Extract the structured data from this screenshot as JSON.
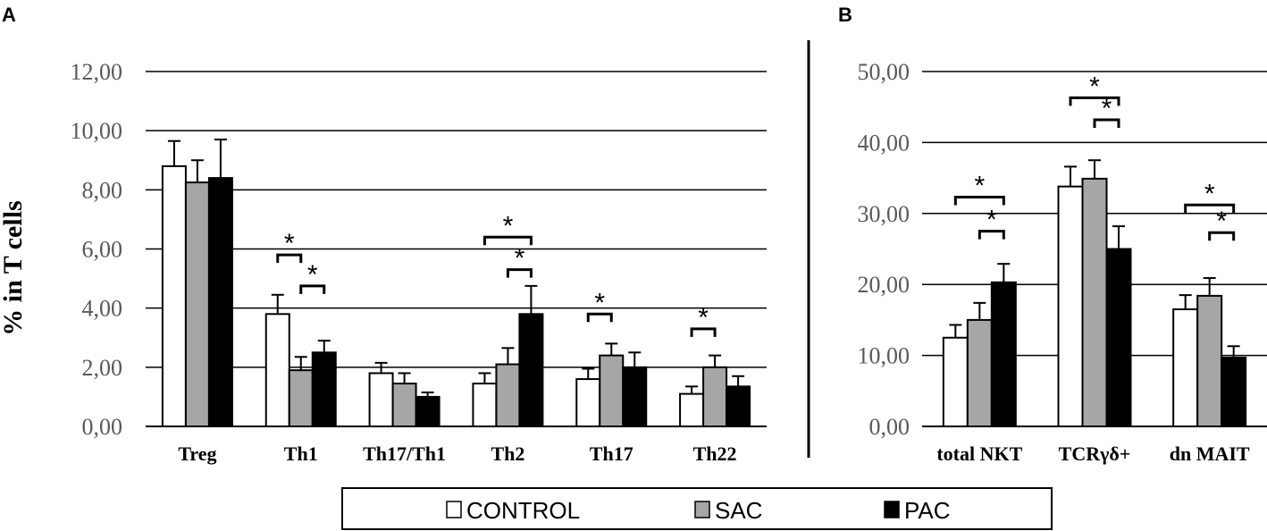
{
  "y_axis_label": "% in T cells",
  "legend": [
    {
      "label": "CONTROL",
      "color": "#ffffff"
    },
    {
      "label": "SAC",
      "color": "#a6a6a6"
    },
    {
      "label": "PAC",
      "color": "#000000"
    }
  ],
  "chart_data": [
    {
      "panel": "A",
      "type": "bar",
      "ylim": [
        0,
        12
      ],
      "yticks": [
        "0,00",
        "2,00",
        "4,00",
        "6,00",
        "8,00",
        "10,00",
        "12,00"
      ],
      "categories": [
        "Treg",
        "Th1",
        "Th17/Th1",
        "Th2",
        "Th17",
        "Th22"
      ],
      "series": [
        {
          "name": "CONTROL",
          "values": [
            8.8,
            3.8,
            1.8,
            1.45,
            1.6,
            1.1
          ],
          "errors": [
            0.85,
            0.65,
            0.35,
            0.35,
            0.35,
            0.25
          ]
        },
        {
          "name": "SAC",
          "values": [
            8.25,
            1.9,
            1.45,
            2.1,
            2.4,
            2.0
          ],
          "errors": [
            0.75,
            0.45,
            0.35,
            0.55,
            0.4,
            0.4
          ]
        },
        {
          "name": "PAC",
          "values": [
            8.4,
            2.5,
            1.0,
            3.8,
            2.0,
            1.35
          ],
          "errors": [
            1.3,
            0.4,
            0.15,
            0.95,
            0.5,
            0.35
          ]
        }
      ],
      "significance": [
        {
          "category": 1,
          "from": 0,
          "to": 1,
          "y": 5.8,
          "label": "*"
        },
        {
          "category": 1,
          "from": 1,
          "to": 2,
          "y": 4.75,
          "label": "*"
        },
        {
          "category": 3,
          "from": 0,
          "to": 2,
          "y": 6.4,
          "label": "*"
        },
        {
          "category": 3,
          "from": 1,
          "to": 2,
          "y": 5.3,
          "label": "*"
        },
        {
          "category": 4,
          "from": 0,
          "to": 1,
          "y": 3.8,
          "label": "*"
        },
        {
          "category": 5,
          "from": 0,
          "to": 1,
          "y": 3.3,
          "label": "*"
        }
      ]
    },
    {
      "panel": "B",
      "type": "bar",
      "ylim": [
        0,
        50
      ],
      "yticks": [
        "0,00",
        "10,00",
        "20,00",
        "30,00",
        "40,00",
        "50,00"
      ],
      "categories": [
        "total NKT",
        "TCRγδ+",
        "dn MAIT"
      ],
      "series": [
        {
          "name": "CONTROL",
          "values": [
            12.5,
            33.8,
            16.5
          ],
          "errors": [
            1.8,
            2.8,
            2.0
          ]
        },
        {
          "name": "SAC",
          "values": [
            15.0,
            34.9,
            18.4
          ],
          "errors": [
            2.4,
            2.6,
            2.5
          ]
        },
        {
          "name": "PAC",
          "values": [
            20.3,
            25.0,
            9.7
          ],
          "errors": [
            2.6,
            3.2,
            1.6
          ]
        }
      ],
      "significance": [
        {
          "category": 0,
          "from": 0,
          "to": 2,
          "y": 32.3,
          "label": "*"
        },
        {
          "category": 0,
          "from": 1,
          "to": 2,
          "y": 27.5,
          "label": "*"
        },
        {
          "category": 1,
          "from": 0,
          "to": 2,
          "y": 46.3,
          "label": "*"
        },
        {
          "category": 1,
          "from": 1,
          "to": 2,
          "y": 43.2,
          "label": "*"
        },
        {
          "category": 2,
          "from": 0,
          "to": 2,
          "y": 31.2,
          "label": "*"
        },
        {
          "category": 2,
          "from": 1,
          "to": 2,
          "y": 27.3,
          "label": "*"
        }
      ]
    }
  ]
}
